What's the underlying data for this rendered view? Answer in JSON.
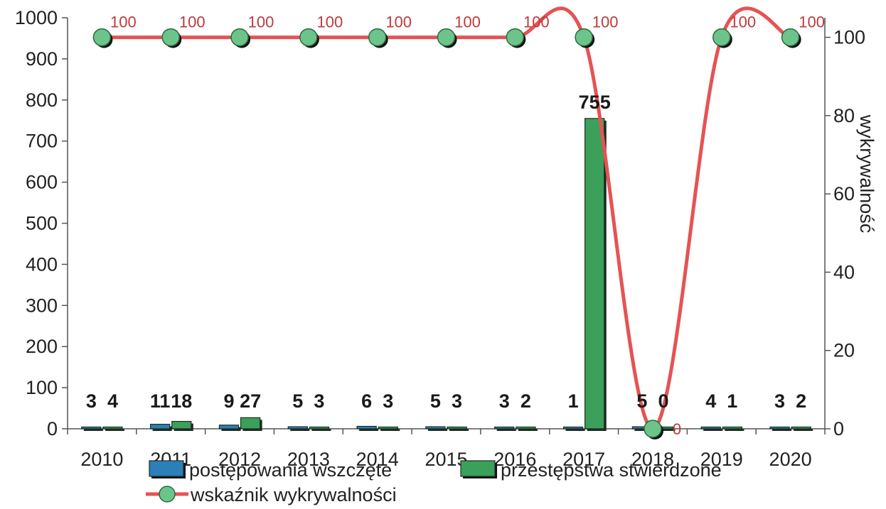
{
  "chart_data": {
    "type": "bar",
    "categories": [
      "2010",
      "2011",
      "2012",
      "2013",
      "2014",
      "2015",
      "2016",
      "2017",
      "2018",
      "2019",
      "2020"
    ],
    "series": [
      {
        "name": "postępowania wszczęte",
        "type": "bar",
        "values": [
          3,
          11,
          9,
          5,
          6,
          5,
          3,
          1,
          5,
          4,
          3
        ],
        "color": "#2c7fb8"
      },
      {
        "name": "przestępstwa stwierdzone",
        "type": "bar",
        "values": [
          4,
          18,
          27,
          3,
          3,
          3,
          2,
          755,
          0,
          1,
          2
        ],
        "color": "#3aa05a"
      },
      {
        "name": "wskaźnik wykrywalności",
        "type": "line",
        "axis": "right",
        "values": [
          100,
          100,
          100,
          100,
          100,
          100,
          100,
          100,
          0,
          100,
          100
        ],
        "color": "#e55353",
        "marker_color": "#6cc48a"
      }
    ],
    "y_left": {
      "ylim": [
        0,
        1000
      ],
      "ticks": [
        0,
        100,
        200,
        300,
        400,
        500,
        600,
        700,
        800,
        900,
        1000
      ]
    },
    "y_right": {
      "ylabel": "wykrywalność",
      "ylim": [
        0,
        105
      ],
      "ticks": [
        0,
        20,
        40,
        60,
        80,
        100
      ]
    },
    "legend_position": "bottom",
    "grid": false
  }
}
